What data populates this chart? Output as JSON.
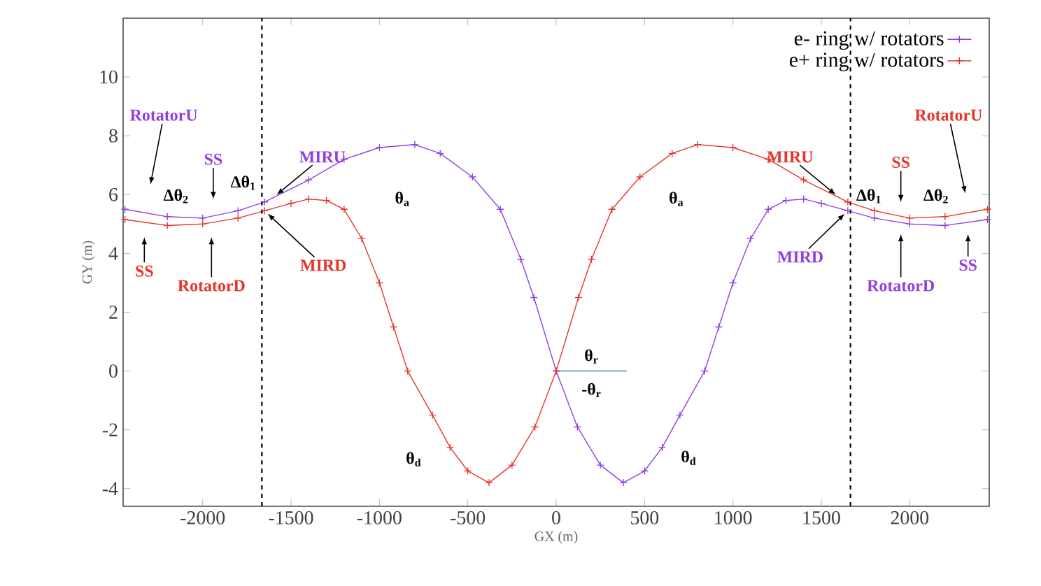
{
  "chart_data": {
    "type": "line",
    "xlabel": "GX (m)",
    "ylabel": "GY (m)",
    "xlim": [
      -2450,
      2450
    ],
    "ylim": [
      -4.6,
      12
    ],
    "xticks": [
      -2000,
      -1500,
      -1000,
      -500,
      0,
      500,
      1000,
      1500,
      2000
    ],
    "yticks": [
      -4,
      -2,
      0,
      2,
      4,
      6,
      8,
      10
    ],
    "legend": "top right",
    "grid": false,
    "line_style": "solid",
    "series": [
      {
        "name": "e- ring w/ rotators",
        "color": "#9040e0",
        "marker": "cross",
        "x": [
          -2440,
          -2200,
          -2000,
          -1800,
          -1650,
          -1400,
          -1200,
          -1000,
          -800,
          -656,
          -474,
          -316,
          -200,
          -126,
          0,
          120,
          250,
          380,
          500,
          600,
          700,
          840,
          920,
          1000,
          1100,
          1200,
          1300,
          1400,
          1500,
          1650,
          1800,
          2000,
          2200,
          2440
        ],
        "values": [
          5.5,
          5.25,
          5.2,
          5.45,
          5.75,
          6.5,
          7.2,
          7.6,
          7.7,
          7.4,
          6.6,
          5.5,
          3.8,
          2.5,
          0,
          -1.9,
          -3.2,
          -3.8,
          -3.4,
          -2.6,
          -1.5,
          0,
          1.5,
          3.0,
          4.5,
          5.5,
          5.8,
          5.85,
          5.7,
          5.45,
          5.2,
          5.0,
          4.95,
          5.15
        ]
      },
      {
        "name": "e+ ring w/ rotators",
        "color": "#e8342a",
        "marker": "cross",
        "x": [
          -2440,
          -2200,
          -2000,
          -1800,
          -1650,
          -1500,
          -1400,
          -1300,
          -1200,
          -1100,
          -1000,
          -920,
          -840,
          -700,
          -600,
          -500,
          -380,
          -250,
          -120,
          0,
          126,
          200,
          316,
          474,
          656,
          800,
          1000,
          1200,
          1400,
          1650,
          1800,
          2000,
          2200,
          2440
        ],
        "values": [
          5.15,
          4.95,
          5.0,
          5.2,
          5.45,
          5.7,
          5.85,
          5.8,
          5.5,
          4.5,
          3.0,
          1.5,
          0,
          -1.5,
          -2.6,
          -3.4,
          -3.8,
          -3.2,
          -1.9,
          0,
          2.5,
          3.8,
          5.5,
          6.6,
          7.4,
          7.7,
          7.6,
          7.2,
          6.5,
          5.75,
          5.45,
          5.2,
          5.25,
          5.5
        ]
      },
      {
        "color": "#4a7fc0",
        "marker": "none",
        "x": [
          0,
          400
        ],
        "values": [
          0,
          0
        ]
      }
    ],
    "ref_lines": [
      {
        "axis": "x",
        "value": -1665,
        "color": "#000000",
        "line_style": "dashed"
      },
      {
        "axis": "x",
        "value": 1665,
        "color": "#000000",
        "line_style": "dashed"
      }
    ],
    "annotations": [
      "RotatorU",
      "SS",
      "Δθ$_{2}$",
      "Δθ$_{1}$",
      {
        "text": "MIRU",
        "x": -1600,
        "y": 5.9
      },
      "SS",
      "RotatorD",
      {
        "text": "MIRD",
        "x": -1650,
        "y": 5.45
      },
      "θ$_{a}$",
      "θ$_{d}$",
      {
        "text": "MIRU",
        "x": 1600,
        "y": 5.9
      },
      "SS",
      "RotatorU",
      "Δθ$_{1}$",
      "Δθ$_{2}$",
      {
        "text": "MIRD",
        "x": 1650,
        "y": 5.45
      },
      "RotatorD",
      "SS",
      "θ$_{a}$",
      "θ$_{d}$",
      "θ$_{r}$",
      "-θ$_{r}$"
    ]
  }
}
